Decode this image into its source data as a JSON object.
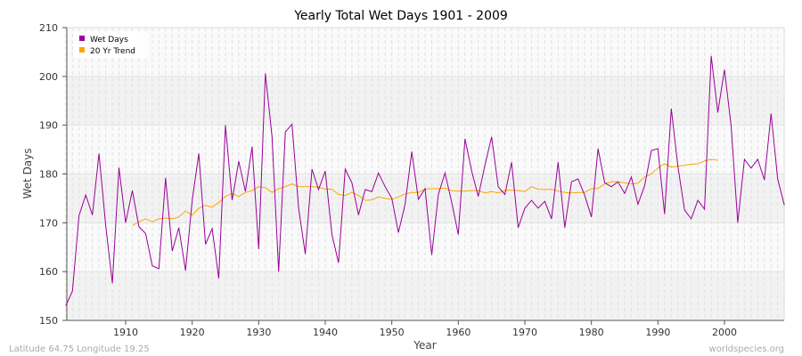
{
  "chart_data": {
    "type": "line",
    "title": "Yearly Total Wet Days 1901 - 2009",
    "xlabel": "Year",
    "ylabel": "Wet Days",
    "xlim": [
      1901,
      2009
    ],
    "ylim": [
      150,
      210
    ],
    "x_ticks": [
      1910,
      1920,
      1930,
      1940,
      1950,
      1960,
      1970,
      1980,
      1990,
      2000
    ],
    "y_ticks": [
      150,
      160,
      170,
      180,
      190,
      200,
      210
    ],
    "grid": true,
    "legend_position": "top-left",
    "series": [
      {
        "name": "Wet Days",
        "color": "#990099",
        "x_start": 1901,
        "values": [
          153,
          156,
          171.5,
          175.7,
          171.6,
          184.2,
          169.5,
          157.6,
          181.3,
          170,
          176.6,
          169.2,
          167.8,
          161.2,
          160.6,
          179.2,
          164.2,
          169,
          160.2,
          174.6,
          184.2,
          165.6,
          168.8,
          158.6,
          190,
          174.6,
          182.6,
          176.4,
          185.6,
          164.6,
          200.6,
          187.6,
          160,
          188.6,
          190.2,
          173,
          163.6,
          181,
          176.8,
          180.6,
          167.6,
          161.8,
          181,
          178.2,
          171.6,
          176.8,
          176.4,
          180.2,
          177.4,
          175,
          168,
          173.8,
          184.6,
          174.8,
          177,
          163.4,
          175.8,
          180.2,
          174.2,
          167.6,
          187.2,
          180.6,
          175.4,
          181.8,
          187.6,
          177.4,
          175.8,
          182.4,
          169,
          173,
          174.6,
          173,
          174.4,
          170.8,
          182.4,
          169,
          178.4,
          179,
          175.6,
          171.2,
          185.2,
          178.2,
          177.4,
          178.4,
          176,
          179.4,
          173.8,
          177.6,
          184.8,
          185.2,
          171.8,
          193.4,
          181.6,
          172.6,
          170.8,
          174.6,
          172.8,
          204.2,
          192.6,
          201.4,
          189.8,
          170,
          183,
          181.2,
          183,
          178.8,
          192.4,
          179,
          173.6
        ]
      },
      {
        "name": "20 Yr Trend",
        "color": "#ffa500",
        "x_start": 1911,
        "values": [
          169.4,
          170.2,
          170.8,
          170.2,
          170.8,
          171,
          170.8,
          171.2,
          172.4,
          171.6,
          173,
          173.6,
          173.2,
          174.2,
          175.4,
          176,
          175.4,
          176.2,
          176.6,
          177.4,
          177.2,
          176.2,
          177,
          177.4,
          178,
          177.4,
          177.4,
          177.4,
          177.3,
          176.9,
          176.9,
          175.8,
          175.6,
          176.2,
          175.6,
          174.6,
          174.7,
          175.3,
          175,
          174.8,
          175.3,
          175.9,
          176.2,
          176.2,
          176.9,
          177,
          177,
          177.1,
          176.6,
          176.5,
          176.5,
          176.6,
          176.6,
          176.1,
          176.4,
          176.1,
          176.6,
          176.7,
          176.6,
          176.4,
          177.4,
          176.9,
          176.8,
          176.9,
          176.5,
          176.2,
          176.1,
          176.2,
          176.2,
          177,
          177,
          178,
          178.4,
          178.4,
          178.2,
          178,
          178.1,
          179.4,
          180,
          181.2,
          182.1,
          181.4,
          181.6,
          181.8,
          182,
          182.1,
          182.7,
          183,
          182.8
        ]
      }
    ]
  },
  "footer": {
    "location": "Latitude 64.75 Longitude 19.25",
    "source": "worldspecies.org"
  }
}
